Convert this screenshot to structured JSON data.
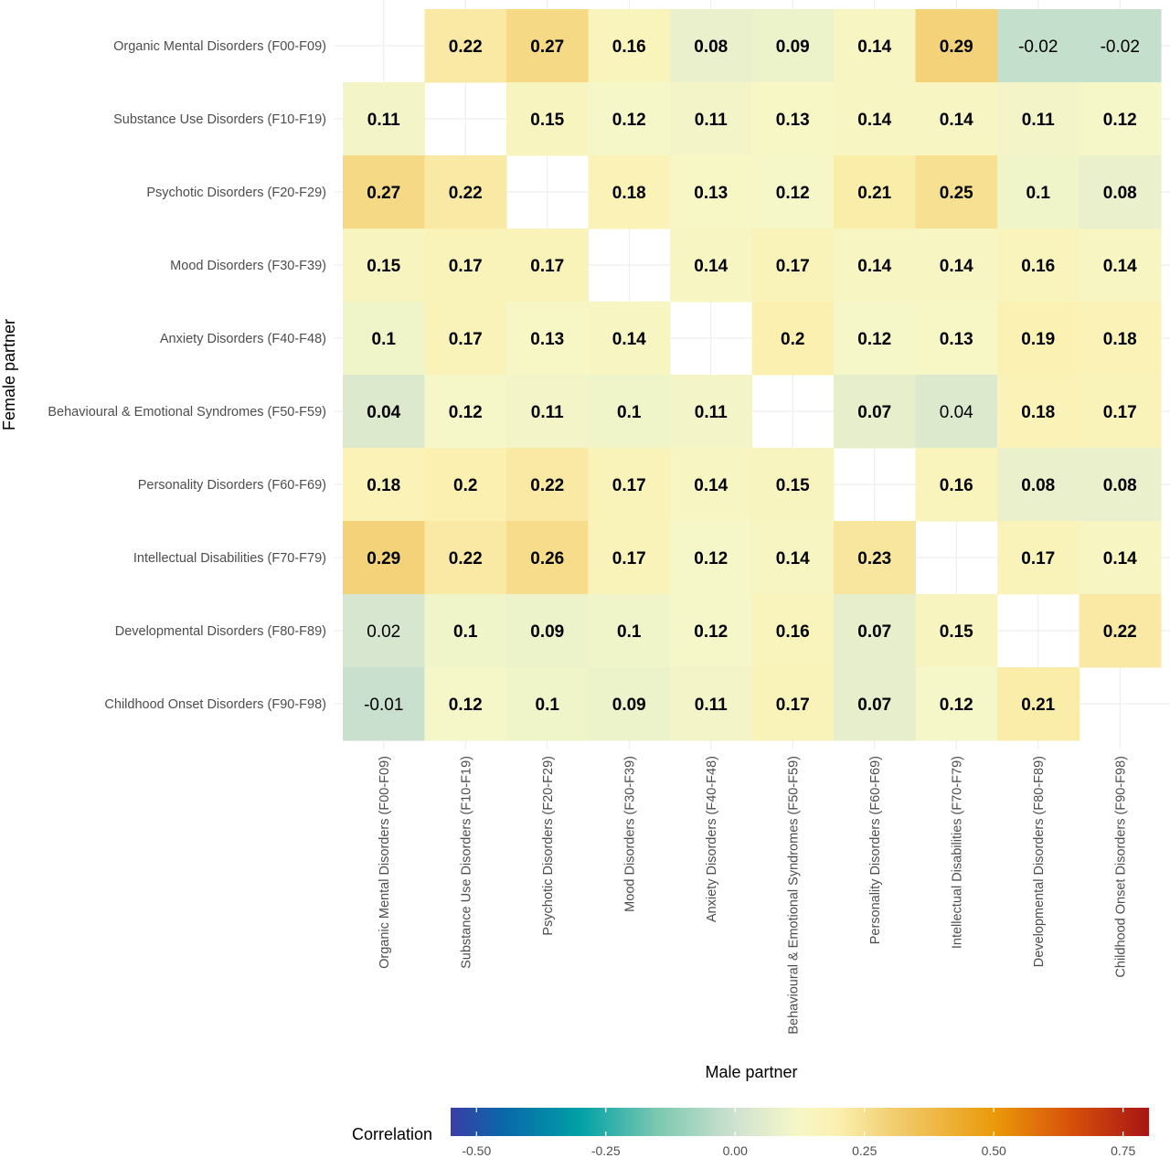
{
  "chart_data": {
    "type": "heatmap",
    "xlabel": "Male partner",
    "ylabel": "Female partner",
    "categories": [
      "Organic Mental Disorders (F00-F09)",
      "Substance Use Disorders (F10-F19)",
      "Psychotic Disorders (F20-F29)",
      "Mood Disorders (F30-F39)",
      "Anxiety Disorders (F40-F48)",
      "Behavioural & Emotional Syndromes (F50-F59)",
      "Personality Disorders (F60-F69)",
      "Intellectual Disabilities (F70-F79)",
      "Developmental Disorders (F80-F89)",
      "Childhood Onset Disorders (F90-F98)"
    ],
    "values": [
      [
        null,
        0.22,
        0.27,
        0.16,
        0.08,
        0.09,
        0.14,
        0.29,
        -0.02,
        -0.02
      ],
      [
        0.11,
        null,
        0.15,
        0.12,
        0.11,
        0.13,
        0.14,
        0.14,
        0.11,
        0.12
      ],
      [
        0.27,
        0.22,
        null,
        0.18,
        0.13,
        0.12,
        0.21,
        0.25,
        0.1,
        0.08
      ],
      [
        0.15,
        0.17,
        0.17,
        null,
        0.14,
        0.17,
        0.14,
        0.14,
        0.16,
        0.14
      ],
      [
        0.1,
        0.17,
        0.13,
        0.14,
        null,
        0.2,
        0.12,
        0.13,
        0.19,
        0.18
      ],
      [
        0.04,
        0.12,
        0.11,
        0.1,
        0.11,
        null,
        0.07,
        0.04,
        0.18,
        0.17
      ],
      [
        0.18,
        0.2,
        0.22,
        0.17,
        0.14,
        0.15,
        null,
        0.16,
        0.08,
        0.08
      ],
      [
        0.29,
        0.22,
        0.26,
        0.17,
        0.12,
        0.14,
        0.23,
        null,
        0.17,
        0.14
      ],
      [
        0.02,
        0.1,
        0.09,
        0.1,
        0.12,
        0.16,
        0.07,
        0.15,
        null,
        0.22
      ],
      [
        -0.01,
        0.12,
        0.1,
        0.09,
        0.11,
        0.17,
        0.07,
        0.12,
        0.21,
        null
      ]
    ],
    "bold": [
      [
        false,
        true,
        true,
        true,
        true,
        true,
        true,
        true,
        false,
        false
      ],
      [
        true,
        false,
        true,
        true,
        true,
        true,
        true,
        true,
        true,
        true
      ],
      [
        true,
        true,
        false,
        true,
        true,
        true,
        true,
        true,
        true,
        true
      ],
      [
        true,
        true,
        true,
        false,
        true,
        true,
        true,
        true,
        true,
        true
      ],
      [
        true,
        true,
        true,
        true,
        false,
        true,
        true,
        true,
        true,
        true
      ],
      [
        true,
        true,
        true,
        true,
        true,
        false,
        true,
        false,
        true,
        true
      ],
      [
        true,
        true,
        true,
        true,
        true,
        true,
        false,
        true,
        true,
        true
      ],
      [
        true,
        true,
        true,
        true,
        true,
        true,
        true,
        false,
        true,
        true
      ],
      [
        false,
        true,
        true,
        true,
        true,
        true,
        true,
        true,
        false,
        true
      ],
      [
        false,
        true,
        true,
        true,
        true,
        true,
        true,
        true,
        true,
        false
      ]
    ],
    "legend": {
      "title": "Correlation",
      "placement": "bottom",
      "range": [
        -0.55,
        0.8
      ],
      "ticks": [
        -0.5,
        -0.25,
        0.0,
        0.25,
        0.5,
        0.75
      ],
      "tick_labels": [
        "-0.50",
        "-0.25",
        "0.00",
        "0.25",
        "0.50",
        "0.75"
      ],
      "colors": [
        {
          "v": -0.55,
          "c": "#3a3da6"
        },
        {
          "v": -0.45,
          "c": "#0a67a8"
        },
        {
          "v": -0.3,
          "c": "#00a0a6"
        },
        {
          "v": -0.15,
          "c": "#7cc8b0"
        },
        {
          "v": 0.0,
          "c": "#cfe2d0"
        },
        {
          "v": 0.12,
          "c": "#f6f7c8"
        },
        {
          "v": 0.2,
          "c": "#fbf0b0"
        },
        {
          "v": 0.3,
          "c": "#f2cf73"
        },
        {
          "v": 0.5,
          "c": "#ea9a0a"
        },
        {
          "v": 0.65,
          "c": "#d7500a"
        },
        {
          "v": 0.8,
          "c": "#a81515"
        }
      ]
    },
    "grid": true
  }
}
